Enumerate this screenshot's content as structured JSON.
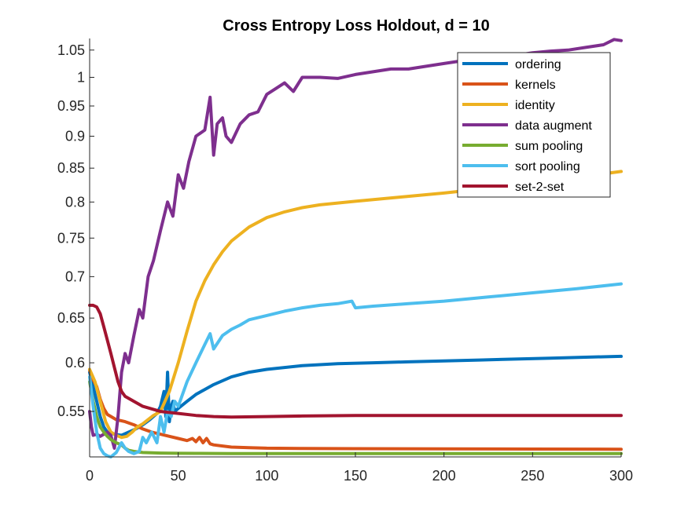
{
  "chart_data": {
    "type": "line",
    "title": "Cross Entropy Loss Holdout, d = 10",
    "xlabel": "",
    "ylabel": "",
    "xlim": [
      0,
      300
    ],
    "ylim": [
      0.507,
      1.072
    ],
    "y_scale": "log",
    "x_ticks": [
      0,
      50,
      100,
      150,
      200,
      250,
      300
    ],
    "x_tick_labels": [
      "0",
      "50",
      "100",
      "150",
      "200",
      "250",
      "300"
    ],
    "y_ticks": [
      0.55,
      0.6,
      0.65,
      0.7,
      0.75,
      0.8,
      0.85,
      0.9,
      0.95,
      1.0,
      1.05
    ],
    "y_tick_labels": [
      "0.55",
      "0.6",
      "0.65",
      "0.7",
      "0.75",
      "0.8",
      "0.85",
      "0.9",
      "0.95",
      "1",
      "1.05"
    ],
    "legend_position": "top-right",
    "grid": false,
    "series": [
      {
        "name": "ordering",
        "color": "#0072BD",
        "x": [
          0,
          2,
          4,
          6,
          8,
          10,
          14,
          18,
          22,
          26,
          30,
          34,
          38,
          40,
          42,
          43,
          44,
          45,
          46,
          47,
          48,
          50,
          55,
          60,
          65,
          70,
          80,
          90,
          100,
          120,
          140,
          160,
          180,
          200,
          220,
          240,
          260,
          280,
          300
        ],
        "y": [
          0.59,
          0.575,
          0.56,
          0.545,
          0.535,
          0.53,
          0.528,
          0.527,
          0.53,
          0.533,
          0.537,
          0.542,
          0.548,
          0.555,
          0.57,
          0.545,
          0.59,
          0.54,
          0.555,
          0.56,
          0.55,
          0.553,
          0.56,
          0.567,
          0.572,
          0.577,
          0.585,
          0.59,
          0.593,
          0.597,
          0.599,
          0.6,
          0.601,
          0.602,
          0.603,
          0.604,
          0.605,
          0.606,
          0.607
        ]
      },
      {
        "name": "kernels",
        "color": "#D95319",
        "x": [
          0,
          2,
          4,
          6,
          8,
          10,
          15,
          20,
          25,
          30,
          35,
          40,
          45,
          50,
          55,
          58,
          60,
          62,
          64,
          66,
          68,
          70,
          75,
          80,
          90,
          100,
          120,
          150,
          200,
          250,
          300
        ],
        "y": [
          0.592,
          0.582,
          0.575,
          0.562,
          0.553,
          0.547,
          0.542,
          0.54,
          0.537,
          0.533,
          0.53,
          0.528,
          0.526,
          0.524,
          0.522,
          0.524,
          0.521,
          0.525,
          0.52,
          0.524,
          0.519,
          0.518,
          0.517,
          0.516,
          0.5155,
          0.515,
          0.5147,
          0.5145,
          0.5143,
          0.5142,
          0.514
        ]
      },
      {
        "name": "identity",
        "color": "#EDB120",
        "x": [
          0,
          3,
          6,
          9,
          12,
          15,
          18,
          21,
          24,
          27,
          30,
          33,
          36,
          40,
          45,
          50,
          55,
          60,
          65,
          70,
          75,
          80,
          90,
          100,
          110,
          120,
          130,
          150,
          175,
          200,
          225,
          250,
          275,
          300
        ],
        "y": [
          0.593,
          0.58,
          0.56,
          0.54,
          0.53,
          0.527,
          0.525,
          0.526,
          0.53,
          0.535,
          0.538,
          0.542,
          0.546,
          0.55,
          0.57,
          0.6,
          0.635,
          0.67,
          0.695,
          0.715,
          0.732,
          0.746,
          0.765,
          0.778,
          0.786,
          0.792,
          0.796,
          0.801,
          0.807,
          0.813,
          0.82,
          0.828,
          0.836,
          0.845
        ]
      },
      {
        "name": "data augment",
        "color": "#7E2F8E",
        "x": [
          0,
          1,
          2,
          4,
          6,
          8,
          10,
          12,
          14,
          16,
          18,
          20,
          22,
          25,
          28,
          30,
          33,
          36,
          40,
          44,
          47,
          50,
          53,
          56,
          60,
          65,
          68,
          70,
          72,
          75,
          77,
          80,
          85,
          90,
          95,
          100,
          105,
          110,
          115,
          120,
          130,
          140,
          150,
          160,
          170,
          180,
          190,
          200,
          210,
          220,
          230,
          240,
          250,
          260,
          270,
          280,
          290,
          296,
          300
        ],
        "y": [
          0.55,
          0.535,
          0.527,
          0.528,
          0.526,
          0.528,
          0.53,
          0.527,
          0.515,
          0.545,
          0.59,
          0.61,
          0.6,
          0.63,
          0.66,
          0.65,
          0.7,
          0.72,
          0.76,
          0.8,
          0.78,
          0.84,
          0.82,
          0.86,
          0.9,
          0.91,
          0.965,
          0.87,
          0.92,
          0.93,
          0.9,
          0.89,
          0.92,
          0.935,
          0.94,
          0.97,
          0.98,
          0.99,
          0.975,
          1.0,
          1.0,
          0.998,
          1.005,
          1.01,
          1.015,
          1.015,
          1.02,
          1.025,
          1.03,
          1.032,
          1.037,
          1.04,
          1.045,
          1.048,
          1.05,
          1.055,
          1.06,
          1.07,
          1.068
        ]
      },
      {
        "name": "sum pooling",
        "color": "#77AC30",
        "x": [
          0,
          2,
          4,
          6,
          8,
          10,
          12,
          15,
          18,
          20,
          22,
          25,
          30,
          40,
          50,
          60,
          80,
          100,
          150,
          200,
          250,
          300
        ],
        "y": [
          0.58,
          0.56,
          0.545,
          0.535,
          0.53,
          0.526,
          0.523,
          0.52,
          0.518,
          0.515,
          0.513,
          0.512,
          0.511,
          0.5105,
          0.5103,
          0.5102,
          0.5101,
          0.51,
          0.51,
          0.51,
          0.51,
          0.51
        ]
      },
      {
        "name": "sort pooling",
        "color": "#4DBEEE",
        "x": [
          0,
          2,
          4,
          6,
          8,
          10,
          12,
          15,
          18,
          20,
          22,
          25,
          28,
          30,
          32,
          35,
          38,
          40,
          42,
          44,
          46,
          48,
          50,
          55,
          60,
          65,
          68,
          70,
          75,
          80,
          85,
          90,
          100,
          110,
          120,
          130,
          140,
          148,
          150,
          160,
          180,
          200,
          225,
          250,
          275,
          300
        ],
        "y": [
          0.585,
          0.555,
          0.53,
          0.515,
          0.51,
          0.508,
          0.507,
          0.511,
          0.52,
          0.515,
          0.512,
          0.51,
          0.512,
          0.525,
          0.52,
          0.53,
          0.52,
          0.545,
          0.53,
          0.55,
          0.545,
          0.56,
          0.555,
          0.58,
          0.6,
          0.62,
          0.632,
          0.615,
          0.63,
          0.637,
          0.642,
          0.648,
          0.653,
          0.658,
          0.662,
          0.665,
          0.667,
          0.67,
          0.662,
          0.664,
          0.667,
          0.67,
          0.675,
          0.68,
          0.685,
          0.691
        ]
      },
      {
        "name": "set-2-set",
        "color": "#A2142F",
        "x": [
          0,
          2,
          4,
          6,
          8,
          10,
          12,
          14,
          16,
          18,
          20,
          25,
          30,
          40,
          50,
          60,
          70,
          80,
          100,
          120,
          150,
          200,
          250,
          300
        ],
        "y": [
          0.665,
          0.665,
          0.663,
          0.655,
          0.64,
          0.625,
          0.61,
          0.595,
          0.58,
          0.57,
          0.565,
          0.56,
          0.555,
          0.55,
          0.548,
          0.546,
          0.545,
          0.5445,
          0.545,
          0.5455,
          0.546,
          0.546,
          0.546,
          0.546
        ]
      }
    ]
  }
}
